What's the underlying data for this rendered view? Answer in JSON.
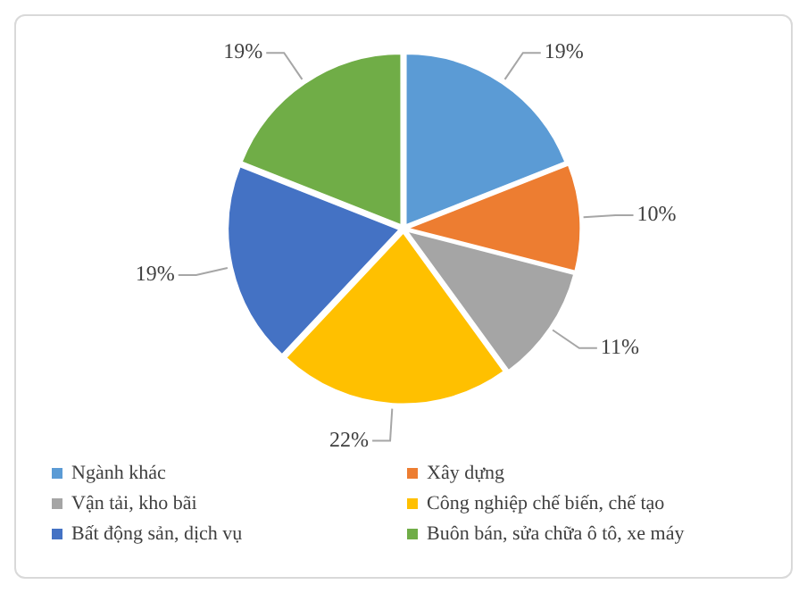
{
  "chart_data": {
    "type": "pie",
    "categories": [
      "Ngành khác",
      "Xây dựng",
      "Vận tải, kho bãi",
      "Công nghiệp chế biến, chế tạo",
      "Bất động sản, dịch vụ",
      "Buôn bán, sửa chữa ô tô, xe máy"
    ],
    "values": [
      19,
      10,
      11,
      22,
      19,
      19
    ],
    "value_labels": [
      "19%",
      "10%",
      "11%",
      "22%",
      "19%",
      "19%"
    ],
    "colors": [
      "#5b9bd5",
      "#ed7d31",
      "#a5a5a5",
      "#ffc000",
      "#4472c4",
      "#70ad47"
    ],
    "legend": "bottom"
  }
}
